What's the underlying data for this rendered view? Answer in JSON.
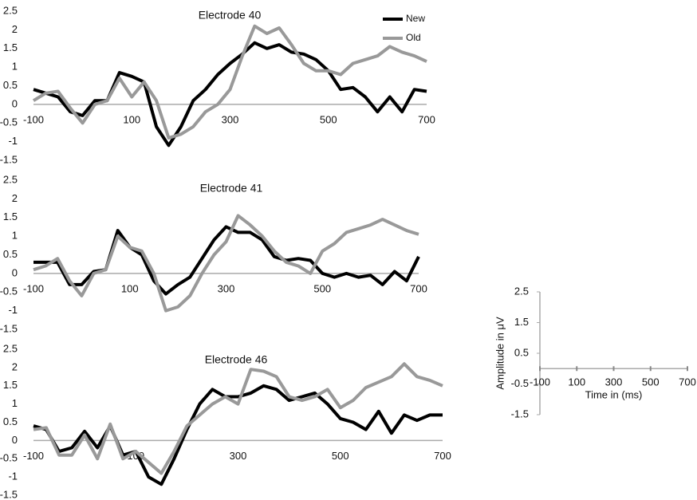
{
  "chart_data": [
    {
      "type": "line",
      "title": "Electrode 40",
      "legend": "top-right",
      "x": [
        -100,
        -75,
        -50,
        -25,
        0,
        25,
        50,
        75,
        100,
        125,
        150,
        175,
        200,
        225,
        250,
        275,
        300,
        325,
        350,
        375,
        400,
        425,
        450,
        475,
        500,
        525,
        550,
        575,
        600,
        625,
        650,
        675,
        700
      ],
      "xlim": [
        -100,
        700
      ],
      "xticks": [
        -100,
        100,
        300,
        500,
        700
      ],
      "ylim": [
        -1.5,
        2.5
      ],
      "yticks": [
        -1.5,
        -1,
        -0.5,
        0,
        0.5,
        1,
        1.5,
        2,
        2.5
      ],
      "series": [
        {
          "name": "New",
          "color": "#000000",
          "values": [
            0.4,
            0.3,
            0.2,
            -0.2,
            -0.3,
            0.1,
            0.1,
            0.85,
            0.75,
            0.6,
            -0.6,
            -1.1,
            -0.6,
            0.1,
            0.4,
            0.8,
            1.1,
            1.35,
            1.65,
            1.5,
            1.6,
            1.4,
            1.35,
            1.2,
            0.9,
            0.4,
            0.45,
            0.2,
            -0.2,
            0.2,
            -0.2,
            0.4,
            0.35
          ]
        },
        {
          "name": "Old",
          "color": "#999999",
          "values": [
            0.1,
            0.3,
            0.35,
            -0.1,
            -0.5,
            0,
            0.1,
            0.7,
            0.2,
            0.6,
            0.1,
            -0.9,
            -0.8,
            -0.6,
            -0.2,
            0,
            0.4,
            1.3,
            2.1,
            1.9,
            2.05,
            1.6,
            1.1,
            0.9,
            0.9,
            0.8,
            1.1,
            1.2,
            1.3,
            1.55,
            1.4,
            1.3,
            1.15
          ]
        }
      ]
    },
    {
      "type": "line",
      "title": "Electrode 41",
      "x": [
        -100,
        -75,
        -50,
        -25,
        0,
        25,
        50,
        75,
        100,
        125,
        150,
        175,
        200,
        225,
        250,
        275,
        300,
        325,
        350,
        375,
        400,
        425,
        450,
        475,
        500,
        525,
        550,
        575,
        600,
        625,
        650,
        675,
        700
      ],
      "xlim": [
        -100,
        700
      ],
      "xticks": [
        -100,
        100,
        300,
        500,
        700
      ],
      "ylim": [
        -1.5,
        2.5
      ],
      "yticks": [
        -1.5,
        -1,
        -0.5,
        0,
        0.5,
        1,
        1.5,
        2,
        2.5
      ],
      "series": [
        {
          "name": "New",
          "color": "#000000",
          "values": [
            0.3,
            0.3,
            0.3,
            -0.3,
            -0.3,
            0.05,
            0.1,
            1.15,
            0.7,
            0.5,
            -0.2,
            -0.55,
            -0.3,
            -0.1,
            0.4,
            0.9,
            1.25,
            1.1,
            1.1,
            0.9,
            0.45,
            0.35,
            0.4,
            0.35,
            0,
            -0.1,
            0,
            -0.1,
            -0.05,
            -0.3,
            0.05,
            -0.2,
            0.45
          ]
        },
        {
          "name": "Old",
          "color": "#999999",
          "values": [
            0.1,
            0.2,
            0.4,
            -0.2,
            -0.6,
            0,
            0.1,
            1.0,
            0.7,
            0.6,
            0,
            -1.0,
            -0.9,
            -0.6,
            0,
            0.5,
            0.85,
            1.55,
            1.3,
            1.0,
            0.6,
            0.3,
            0.2,
            0,
            0.6,
            0.8,
            1.1,
            1.2,
            1.3,
            1.45,
            1.3,
            1.15,
            1.05
          ]
        }
      ]
    },
    {
      "type": "line",
      "title": "Electrode 46",
      "x": [
        -100,
        -75,
        -50,
        -25,
        0,
        25,
        50,
        75,
        100,
        125,
        150,
        175,
        200,
        225,
        250,
        275,
        300,
        325,
        350,
        375,
        400,
        425,
        450,
        475,
        500,
        525,
        550,
        575,
        600,
        625,
        650,
        675,
        700
      ],
      "xlim": [
        -100,
        700
      ],
      "xticks": [
        -100,
        100,
        300,
        500,
        700
      ],
      "ylim": [
        -1.5,
        2.5
      ],
      "yticks": [
        -1.5,
        -1,
        -0.5,
        0,
        0.5,
        1,
        1.5,
        2,
        2.5
      ],
      "series": [
        {
          "name": "New",
          "color": "#000000",
          "values": [
            0.4,
            0.3,
            -0.3,
            -0.2,
            0.25,
            -0.2,
            0.4,
            -0.4,
            -0.3,
            -1.0,
            -1.2,
            -0.5,
            0.3,
            1.0,
            1.4,
            1.2,
            1.2,
            1.3,
            1.5,
            1.4,
            1.1,
            1.2,
            1.3,
            1.0,
            0.6,
            0.5,
            0.3,
            0.8,
            0.2,
            0.7,
            0.55,
            0.7,
            0.7
          ]
        },
        {
          "name": "Old",
          "color": "#999999",
          "values": [
            0.3,
            0.35,
            -0.4,
            -0.4,
            0.15,
            -0.5,
            0.45,
            -0.5,
            -0.3,
            -0.6,
            -0.9,
            -0.3,
            0.4,
            0.7,
            1.0,
            1.2,
            1.0,
            1.95,
            1.9,
            1.75,
            1.2,
            1.1,
            1.2,
            1.4,
            0.9,
            1.1,
            1.45,
            1.6,
            1.75,
            2.1,
            1.75,
            1.65,
            1.5
          ]
        }
      ]
    },
    {
      "type": "axes",
      "x_label": "Time in (ms)",
      "y_label": "Amplitude in μV",
      "xlim": [
        -100,
        700
      ],
      "xticks": [
        -100,
        100,
        300,
        500,
        700
      ],
      "ylim": [
        -1.5,
        2.5
      ],
      "yticks": [
        -1.5,
        -0.5,
        0.5,
        1.5,
        2.5
      ]
    }
  ]
}
